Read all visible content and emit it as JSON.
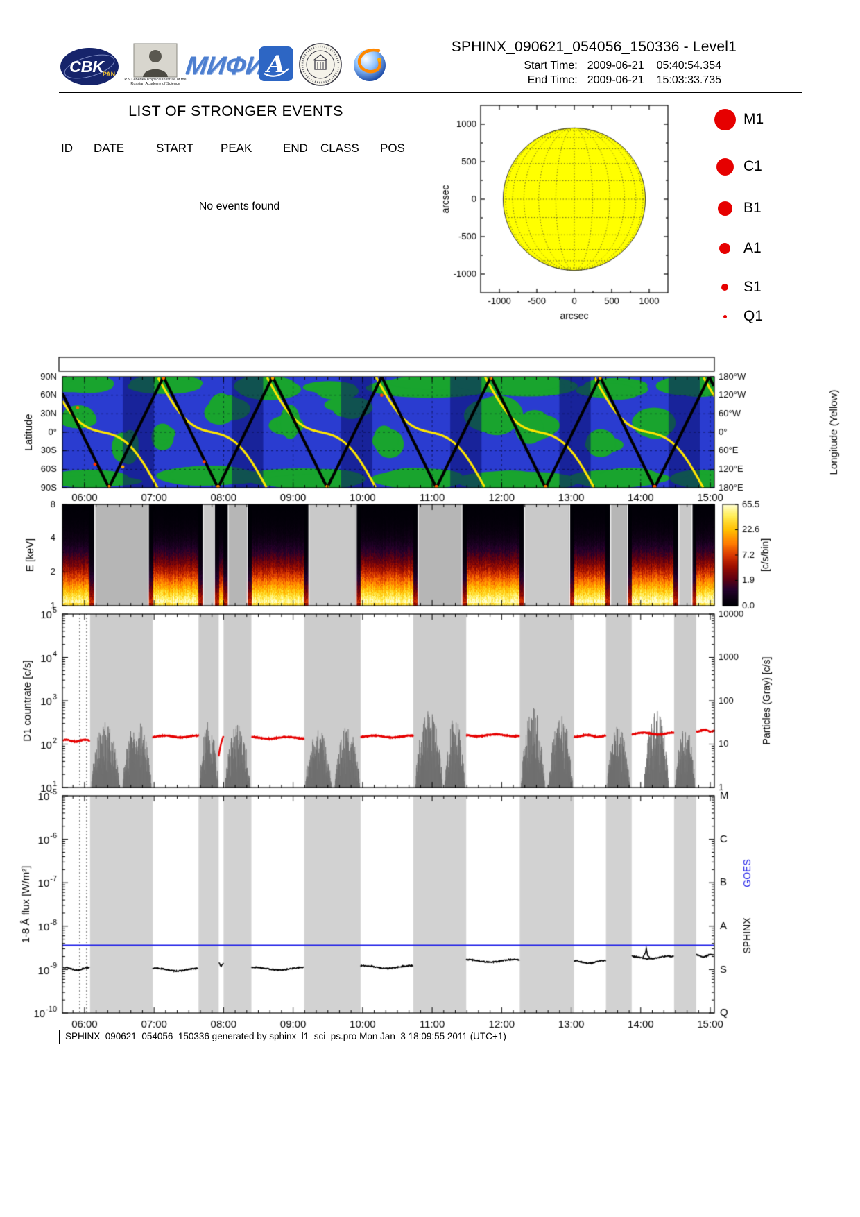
{
  "header": {
    "title": "SPHINX_090621_054056_150336 - Level1",
    "start": {
      "label": "Start Time:",
      "date": "2009-06-21",
      "time": "05:40:54.354"
    },
    "end": {
      "label": "End Time:",
      "date": "2009-06-21",
      "time": "15:03:33.735"
    },
    "logos": {
      "cbk_text": "CBK",
      "cbk_sub": "PAN",
      "lebedev_caption": "P.N.Lebedev Physical Institute of the Russian Academy of Science",
      "mephi_text": "МИФИ"
    }
  },
  "events": {
    "title": "LIST OF STRONGER EVENTS",
    "columns": [
      "ID",
      "DATE",
      "START",
      "PEAK",
      "END",
      "CLASS",
      "POS"
    ],
    "empty_message": "No events found"
  },
  "sun_plot": {
    "xlabel": "arcsec",
    "ylabel": "arcsec",
    "tick_values": [
      -1000,
      -500,
      0,
      500,
      1000
    ],
    "axis_range": [
      -1250,
      1250
    ],
    "disk": {
      "radius_arcsec": 950,
      "fill": "#ffff00",
      "grid_step_deg": 15
    }
  },
  "legend": {
    "color": "#e60000",
    "items": [
      {
        "label": "M1",
        "diameter": 31
      },
      {
        "label": "C1",
        "diameter": 25
      },
      {
        "label": "B1",
        "diameter": 21
      },
      {
        "label": "A1",
        "diameter": 16
      },
      {
        "label": "S1",
        "diameter": 10
      },
      {
        "label": "Q1",
        "diameter": 5
      }
    ]
  },
  "time_axis": {
    "start_h": 5.6817,
    "end_h": 15.0594,
    "ticks": [
      {
        "h": 6,
        "label": "06:00"
      },
      {
        "h": 7,
        "label": "07:00"
      },
      {
        "h": 8,
        "label": "08:00"
      },
      {
        "h": 9,
        "label": "09:00"
      },
      {
        "h": 10,
        "label": "10:00"
      },
      {
        "h": 11,
        "label": "11:00"
      },
      {
        "h": 12,
        "label": "12:00"
      },
      {
        "h": 13,
        "label": "13:00"
      },
      {
        "h": 14,
        "label": "14:00"
      },
      {
        "h": 15,
        "label": "15:00"
      }
    ]
  },
  "chart_data": [
    {
      "type": "line",
      "panel": "orbit-groundtrack",
      "ylabel_left": "Latitude",
      "ylabel_right": "Longitude (Yellow)",
      "lat_tick_labels": [
        "90N",
        "60N",
        "30N",
        "0°",
        "30S",
        "60S",
        "90S"
      ],
      "lon_tick_labels": [
        "180°W",
        "120°W",
        "60°W",
        "0°",
        "60°E",
        "120°E",
        "180°E"
      ],
      "satellite_latitude": {
        "type": "triangle_wave",
        "period_h": 1.57,
        "first_min_h": 6.35,
        "amplitude_deg": 90
      },
      "longitude_track": {
        "period_h": 1.57,
        "wrap_times_h": [
          5.48,
          7.05,
          8.62,
          10.19,
          11.76,
          13.33,
          14.9
        ],
        "wiggle_deg": 45,
        "color": "#ffe600"
      },
      "colors": {
        "ocean": "#2a3cd0",
        "land": "#19a42e",
        "night": "rgba(10,14,110,0.55)",
        "track": "#000000"
      },
      "night_bands": [
        [
          6.55,
          7.0
        ],
        [
          8.12,
          8.57
        ],
        [
          9.69,
          10.14
        ],
        [
          11.26,
          11.71
        ],
        [
          12.83,
          13.28
        ],
        [
          14.4,
          14.85
        ]
      ],
      "green_regions": [
        [
          6.0,
          76,
          0.5,
          14
        ],
        [
          7.3,
          78,
          0.6,
          12
        ],
        [
          8.6,
          74,
          0.5,
          14
        ],
        [
          9.6,
          70,
          0.35,
          12
        ],
        [
          10.9,
          76,
          0.8,
          14
        ],
        [
          12.3,
          75,
          0.7,
          13
        ],
        [
          13.6,
          72,
          0.5,
          12
        ],
        [
          14.75,
          76,
          0.45,
          13
        ],
        [
          6.2,
          -76,
          0.7,
          14
        ],
        [
          7.8,
          -72,
          0.7,
          14
        ],
        [
          9.3,
          -76,
          0.8,
          13
        ],
        [
          10.8,
          -74,
          0.6,
          14
        ],
        [
          12.2,
          -77,
          0.7,
          12
        ],
        [
          13.7,
          -73,
          0.7,
          14
        ],
        [
          14.85,
          -76,
          0.4,
          12
        ],
        [
          5.85,
          25,
          0.25,
          20
        ],
        [
          6.6,
          -25,
          0.2,
          25
        ],
        [
          8.0,
          35,
          0.3,
          18
        ],
        [
          8.9,
          10,
          0.25,
          22
        ],
        [
          9.8,
          40,
          0.3,
          15
        ],
        [
          10.35,
          -15,
          0.2,
          20
        ],
        [
          11.95,
          28,
          0.45,
          26
        ],
        [
          12.45,
          5,
          0.3,
          20
        ],
        [
          13.4,
          -20,
          0.25,
          18
        ],
        [
          14.2,
          18,
          0.3,
          22
        ],
        [
          7.1,
          -5,
          0.15,
          18
        ]
      ],
      "track_markers": [
        [
          6.35,
          -88,
          "#ff8800"
        ],
        [
          6.15,
          -52,
          "#ff3300"
        ],
        [
          6.55,
          -56,
          "#ffaa00"
        ],
        [
          7.92,
          -88,
          "#ff8800"
        ],
        [
          7.72,
          -48,
          "#ff4400"
        ],
        [
          9.49,
          -88,
          "#ffaa00"
        ],
        [
          11.06,
          -88,
          "#ff6600"
        ],
        [
          12.63,
          -88,
          "#ff8800"
        ],
        [
          14.2,
          -88,
          "#ff5500"
        ],
        [
          7.135,
          88,
          "#ff7700"
        ],
        [
          8.705,
          88,
          "#ffaa00"
        ],
        [
          10.275,
          60,
          "#ff4400"
        ],
        [
          11.845,
          88,
          "#ff8800"
        ],
        [
          5.9,
          40,
          "#ff6600"
        ],
        [
          13.415,
          88,
          "#ffaa00"
        ]
      ]
    },
    {
      "type": "heatmap",
      "panel": "energy-spectrogram",
      "ylabel": "E [keV]",
      "energy_range_kev": [
        1,
        8
      ],
      "energy_ticks": [
        1,
        2,
        4,
        8
      ],
      "energy_minor_ticks": [
        3,
        5,
        6,
        7
      ],
      "colorbar": {
        "tick_labels": [
          "65.5",
          "22.6",
          "7.2",
          "1.9",
          "0.0"
        ],
        "unit_label": "[c/s/bin]",
        "max": 65.5
      },
      "palette_stops": [
        [
          0,
          "#000006"
        ],
        [
          1,
          "#26002c"
        ],
        [
          2,
          "#5e0012"
        ],
        [
          4,
          "#9c0e00"
        ],
        [
          7,
          "#d83600"
        ],
        [
          12,
          "#ff7b00"
        ],
        [
          22,
          "#ffc000"
        ],
        [
          40,
          "#ffee55"
        ],
        [
          66,
          "#ffffd8"
        ]
      ],
      "gap_grays": [
        "#b6b6b6",
        "#c9c9c9"
      ],
      "edge_black_h": 0.07,
      "observing_windows": [
        {
          "t": [
            5.69,
            6.08
          ],
          "intensity": 1.0
        },
        {
          "t": [
            6.98,
            7.64
          ],
          "intensity": 1.1
        },
        {
          "t": [
            7.93,
            8.0
          ],
          "intensity": 0.7
        },
        {
          "t": [
            8.4,
            9.16
          ],
          "intensity": 1.05
        },
        {
          "t": [
            9.97,
            10.73
          ],
          "intensity": 1.1
        },
        {
          "t": [
            11.49,
            12.26
          ],
          "intensity": 1.15
        },
        {
          "t": [
            13.04,
            13.5
          ],
          "intensity": 1.1
        },
        {
          "t": [
            13.87,
            14.48
          ],
          "intensity": 1.2
        },
        {
          "t": [
            14.8,
            15.06
          ],
          "intensity": 1.25
        }
      ]
    },
    {
      "type": "line",
      "panel": "d1-countrate",
      "ylabel": "D1 countrate [c/s]",
      "ylabel_right": "Particles (Gray) [c/s]",
      "left_tick_exponents": [
        5,
        4,
        3,
        2,
        1
      ],
      "right_tick_labels": [
        "10000",
        "1000",
        "100",
        "10",
        "1"
      ],
      "countrate_color": "#e60000",
      "particle_color": "#707070",
      "band_color": "#cccccc",
      "dotted_vlines_h": [
        5.93,
        6.03
      ],
      "countrate_segments": [
        {
          "t": [
            5.69,
            6.08
          ],
          "rate": 120
        },
        {
          "t": [
            6.98,
            7.64
          ],
          "rate": 150
        },
        {
          "t": [
            7.93,
            8.0
          ],
          "rate": 95
        },
        {
          "t": [
            8.4,
            9.16
          ],
          "rate": 140
        },
        {
          "t": [
            9.97,
            10.73
          ],
          "rate": 150
        },
        {
          "t": [
            11.49,
            12.26
          ],
          "rate": 160
        },
        {
          "t": [
            13.04,
            13.5
          ],
          "rate": 155
        },
        {
          "t": [
            13.87,
            14.48
          ],
          "rate": 175
        },
        {
          "t": [
            14.8,
            15.06
          ],
          "rate": 205
        }
      ],
      "particle_clusters": [
        {
          "t": [
            6.1,
            6.5
          ],
          "peak": 320
        },
        {
          "t": [
            6.55,
            6.96
          ],
          "peak": 360
        },
        {
          "t": [
            7.66,
            7.92
          ],
          "peak": 380
        },
        {
          "t": [
            8.02,
            8.38
          ],
          "peak": 300
        },
        {
          "t": [
            9.18,
            9.55
          ],
          "peak": 220
        },
        {
          "t": [
            9.6,
            9.96
          ],
          "peak": 260
        },
        {
          "t": [
            10.76,
            11.15
          ],
          "peak": 620
        },
        {
          "t": [
            11.18,
            11.47
          ],
          "peak": 420
        },
        {
          "t": [
            12.28,
            12.62
          ],
          "peak": 700
        },
        {
          "t": [
            12.68,
            13.02
          ],
          "peak": 520
        },
        {
          "t": [
            13.52,
            13.84
          ],
          "peak": 300
        },
        {
          "t": [
            14.05,
            14.4
          ],
          "peak": 600
        },
        {
          "t": [
            14.5,
            14.78
          ],
          "peak": 260
        }
      ]
    },
    {
      "type": "line",
      "panel": "soft-xray-flux",
      "ylabel": "1-8 Å flux [W/m²]",
      "left_tick_exponents": [
        -5,
        -6,
        -7,
        -8,
        -9,
        -10
      ],
      "right_class_labels": [
        "M",
        "C",
        "B",
        "A",
        "S",
        "Q"
      ],
      "right_axis_sphinx": "SPHINX",
      "right_axis_goes": "GOES",
      "goes_color": "#2020e8",
      "goes_line_flux": 3.6e-09,
      "sphinx_color": "#000000",
      "band_color": "#d2d2d2",
      "dotted_vlines_h": [
        5.93,
        6.03
      ],
      "flux_segments": [
        {
          "t": [
            5.69,
            6.08
          ],
          "flux": 1.05e-09
        },
        {
          "t": [
            6.98,
            7.64
          ],
          "flux": 1e-09
        },
        {
          "t": [
            7.93,
            8.0
          ],
          "flux": 1.3e-09
        },
        {
          "t": [
            8.4,
            9.16
          ],
          "flux": 1.05e-09
        },
        {
          "t": [
            9.97,
            10.73
          ],
          "flux": 1.15e-09
        },
        {
          "t": [
            11.49,
            12.26
          ],
          "flux": 1.6e-09
        },
        {
          "t": [
            13.04,
            13.5
          ],
          "flux": 1.5e-09
        },
        {
          "t": [
            13.87,
            14.48
          ],
          "flux": 1.9e-09
        },
        {
          "t": [
            14.8,
            15.06
          ],
          "flux": 2.1e-09
        }
      ],
      "spike": {
        "t_h": 14.08,
        "flux": 3.1e-09
      }
    }
  ],
  "footer": {
    "text": "SPHINX_090621_054056_150336 generated by sphinx_l1_sci_ps.pro Mon Jan  3 18:09:55 2011 (UTC+1)"
  }
}
